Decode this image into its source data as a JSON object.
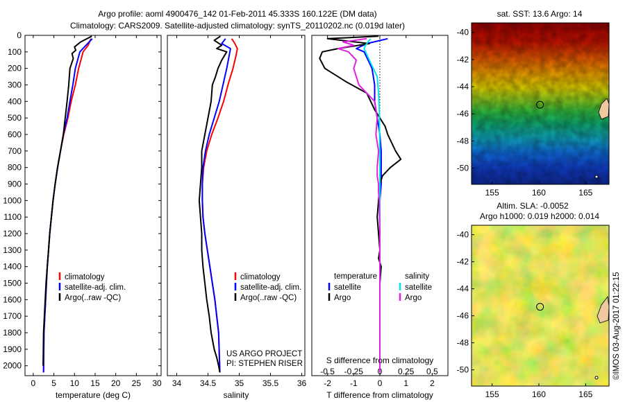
{
  "header": {
    "title_line1": "Argo profile: aoml 4900476_142 01-Feb-2011 45.333S 160.122E (DM data)",
    "title_line2": "Climatology: CARS2009. Satellite-adjusted climatology: synTS_20110202.nc (0.019d later)"
  },
  "colors": {
    "climatology": "#ff0000",
    "satellite": "#0000ff",
    "argo": "#000000",
    "satellite_salinity": "#00e5ee",
    "argo_salinity": "#e020e0"
  },
  "chart_data": [
    {
      "type": "line",
      "name": "temperature-profile",
      "xlabel": "temperature (deg C)",
      "xticks": [
        0,
        5,
        10,
        15,
        20,
        25,
        30
      ],
      "xlim": [
        -2,
        31
      ],
      "ylim": [
        2060,
        0
      ],
      "yticks": [
        0,
        100,
        200,
        300,
        400,
        500,
        600,
        700,
        800,
        900,
        1000,
        1100,
        1200,
        1300,
        1400,
        1500,
        1600,
        1700,
        1800,
        1900,
        2000
      ],
      "legend": [
        "climatology",
        "satellite-adj. clim.",
        "Argo(..raw -QC)"
      ],
      "series": [
        {
          "name": "climatology",
          "color": "#ff0000",
          "x": [
            14.0,
            13.3,
            12.1,
            11.0,
            10.2,
            9.2,
            8.4,
            7.4,
            6.6,
            5.9,
            5.3,
            4.8,
            4.4,
            4.0,
            3.7,
            3.4,
            3.2,
            3.0,
            2.8,
            2.6,
            2.5
          ],
          "y": [
            20,
            60,
            100,
            200,
            300,
            400,
            500,
            600,
            700,
            800,
            900,
            1000,
            1100,
            1200,
            1300,
            1400,
            1500,
            1600,
            1700,
            1800,
            2040
          ]
        },
        {
          "name": "satellite-adj. clim.",
          "color": "#0000ff",
          "x": [
            14.3,
            12.8,
            11.3,
            10.2,
            9.6,
            8.9,
            8.2,
            7.3,
            6.6,
            5.9,
            5.3,
            4.8,
            4.4,
            4.0,
            3.7,
            3.4,
            3.2,
            3.0,
            2.8,
            2.6,
            2.5
          ],
          "y": [
            20,
            60,
            100,
            200,
            300,
            400,
            500,
            600,
            700,
            800,
            900,
            1000,
            1100,
            1200,
            1300,
            1400,
            1500,
            1600,
            1700,
            1800,
            2040
          ]
        },
        {
          "name": "Argo(..raw -QC)",
          "color": "#000000",
          "x": [
            14.2,
            11.5,
            10.0,
            10.3,
            9.4,
            9.7,
            8.9,
            8.6,
            8.2,
            7.3,
            6.6,
            5.9,
            5.3,
            4.8,
            4.4,
            4.0,
            3.7,
            3.4,
            3.1,
            2.9,
            2.7,
            2.5,
            2.4
          ],
          "y": [
            5,
            40,
            70,
            90,
            110,
            140,
            200,
            300,
            400,
            600,
            700,
            800,
            900,
            1000,
            1100,
            1200,
            1300,
            1400,
            1500,
            1600,
            1700,
            1800,
            2000
          ]
        }
      ]
    },
    {
      "type": "line",
      "name": "salinity-profile",
      "xlabel": "salinity",
      "xticks": [
        34,
        34.5,
        35,
        35.5,
        36
      ],
      "xlim": [
        33.85,
        36.05
      ],
      "ylim": [
        2060,
        0
      ],
      "legend": [
        "climatology",
        "satellite-adj. clim.",
        "Argo(..raw -QC)"
      ],
      "annotation": [
        "US ARGO PROJECT",
        "PI: STEPHEN RISER"
      ],
      "series": [
        {
          "name": "climatology",
          "color": "#ff0000",
          "x": [
            34.88,
            34.93,
            34.97,
            34.95,
            34.9,
            34.82,
            34.75,
            34.66,
            34.56,
            34.48,
            34.43,
            34.41,
            34.41,
            34.42,
            34.45,
            34.49,
            34.53,
            34.57,
            34.61,
            34.64,
            34.67,
            34.69
          ],
          "y": [
            20,
            50,
            80,
            120,
            200,
            300,
            400,
            500,
            600,
            700,
            800,
            900,
            1000,
            1100,
            1200,
            1300,
            1400,
            1500,
            1600,
            1700,
            1800,
            2040
          ]
        },
        {
          "name": "satellite-adj. clim.",
          "color": "#0000ff",
          "x": [
            34.78,
            34.72,
            34.86,
            34.84,
            34.8,
            34.74,
            34.68,
            34.6,
            34.52,
            34.46,
            34.42,
            34.41,
            34.41,
            34.42,
            34.45,
            34.49,
            34.53,
            34.57,
            34.61,
            34.64,
            34.67,
            34.69
          ],
          "y": [
            20,
            50,
            80,
            120,
            200,
            300,
            400,
            500,
            600,
            700,
            800,
            900,
            1000,
            1100,
            1200,
            1300,
            1400,
            1500,
            1600,
            1700,
            1800,
            2040
          ]
        },
        {
          "name": "Argo(..raw -QC)",
          "color": "#000000",
          "x": [
            34.7,
            34.6,
            34.72,
            34.64,
            34.8,
            34.72,
            34.66,
            34.62,
            34.57,
            34.55,
            34.5,
            34.45,
            34.4,
            34.4,
            34.38,
            34.36,
            34.38,
            34.4,
            34.4,
            34.42,
            34.45,
            34.48,
            34.52,
            34.55,
            34.6,
            34.64,
            34.67,
            34.69
          ],
          "y": [
            5,
            30,
            60,
            80,
            100,
            150,
            200,
            250,
            300,
            400,
            500,
            600,
            700,
            800,
            900,
            1000,
            1100,
            1200,
            1300,
            1400,
            1500,
            1600,
            1700,
            1800,
            1900,
            1950,
            2000,
            2040
          ]
        }
      ]
    },
    {
      "type": "line",
      "name": "difference-profile",
      "xlabel": "T difference from climatology",
      "xticks": [
        -2,
        -1,
        0,
        1,
        2
      ],
      "xlabel_top": "S difference from climatology",
      "xticks_top": [
        "-0.5",
        "-0.25",
        "0",
        "0.25",
        "0.5"
      ],
      "xlim": [
        -2.6,
        2.6
      ],
      "ylim": [
        2060,
        0
      ],
      "legend": [
        "temperature",
        "satellite",
        "Argo",
        "salinity",
        "satellite",
        "Argo"
      ],
      "series": [
        {
          "name": "temperature satellite",
          "color": "#0000ff",
          "x": [
            0.3,
            -0.5,
            -0.9,
            -0.6,
            -0.3,
            -0.2,
            -0.2,
            -0.1,
            0.0,
            0.05,
            0.05,
            0.05,
            0.0,
            0.0,
            0.0,
            0.0,
            0.0,
            0.0,
            0.0,
            0.0
          ],
          "y": [
            20,
            50,
            80,
            100,
            200,
            300,
            400,
            500,
            600,
            700,
            800,
            900,
            1000,
            1200,
            1400,
            1500,
            1600,
            1700,
            1900,
            2040
          ]
        },
        {
          "name": "temperature Argo",
          "color": "#000000",
          "x": [
            -0.05,
            -2.0,
            -0.4,
            -1.6,
            -2.2,
            -2.3,
            -2.1,
            -1.3,
            -0.5,
            -0.2,
            0.2,
            0.3,
            0.6,
            0.8,
            0.4,
            0.1,
            0.0,
            -0.1,
            0.0,
            -0.05,
            0.05,
            0.0,
            0.0,
            0.0,
            0.0,
            0.0
          ],
          "y": [
            5,
            20,
            50,
            80,
            100,
            140,
            200,
            280,
            350,
            450,
            550,
            600,
            700,
            750,
            800,
            850,
            900,
            1100,
            1300,
            1350,
            1400,
            1500,
            1600,
            1700,
            1900,
            2040
          ]
        },
        {
          "name": "salinity satellite",
          "color": "#00e5ee",
          "x": [
            -0.35,
            -0.55,
            -0.6,
            -0.4,
            -0.1,
            -0.05,
            -0.02,
            -0.01,
            0.0,
            0.0,
            0.0,
            0.0,
            0.0,
            0.0
          ],
          "y": [
            20,
            60,
            80,
            150,
            250,
            350,
            450,
            600,
            800,
            1000,
            1300,
            1500,
            1800,
            2040
          ]
        },
        {
          "name": "salinity Argo",
          "color": "#e020e0",
          "x": [
            -0.5,
            -1.4,
            -1.0,
            -1.6,
            -1.2,
            -0.9,
            -1.0,
            -0.8,
            -0.2,
            -0.1,
            -0.15,
            -0.05,
            -0.1,
            -0.1,
            -0.05,
            -0.05,
            -0.02,
            0.0,
            0.0,
            0.0,
            0.0,
            0.0
          ],
          "y": [
            20,
            40,
            60,
            80,
            100,
            150,
            200,
            300,
            400,
            500,
            600,
            700,
            800,
            850,
            900,
            950,
            1000,
            1200,
            1400,
            1600,
            1800,
            2040
          ]
        }
      ]
    }
  ],
  "maps": [
    {
      "name": "sst-map",
      "title": "sat. SST: 13.6 Argo: 14",
      "yticks": [
        "-40",
        "-42",
        "-44",
        "-46",
        "-48",
        "-50"
      ],
      "xticks": [
        "155",
        "160",
        "165"
      ],
      "marker": {
        "lon": 160.122,
        "lat": -45.333
      },
      "lon_range": [
        152.8,
        167.5
      ],
      "lat_range": [
        -51.2,
        -39.3
      ]
    },
    {
      "name": "sla-map",
      "title_line1": "Altim. SLA: -0.0052",
      "title_line2": "Argo h1000: 0.019 h2000: 0.014",
      "yticks": [
        "-40",
        "-42",
        "-44",
        "-46",
        "-48",
        "-50"
      ],
      "xticks": [
        "155",
        "160",
        "165"
      ],
      "marker": {
        "lon": 160.122,
        "lat": -45.333
      },
      "lon_range": [
        152.8,
        167.5
      ],
      "lat_range": [
        -51.2,
        -39.3
      ]
    }
  ],
  "footer": {
    "credit": "©IMOS 03-Aug-2017 01:22:15"
  }
}
